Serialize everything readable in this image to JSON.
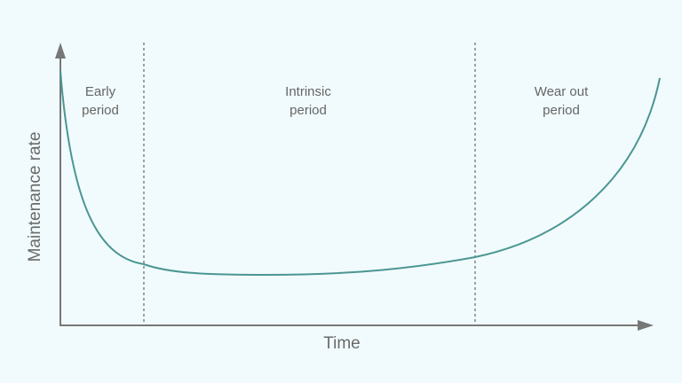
{
  "regions": [
    {
      "lines": [
        "Early",
        "period"
      ]
    },
    {
      "lines": [
        "Intrinsic",
        "period"
      ]
    },
    {
      "lines": [
        "Wear out",
        "period"
      ]
    }
  ],
  "y_axis": {
    "label": "Maintenance rate"
  },
  "x_axis": {
    "label": "Time"
  }
}
